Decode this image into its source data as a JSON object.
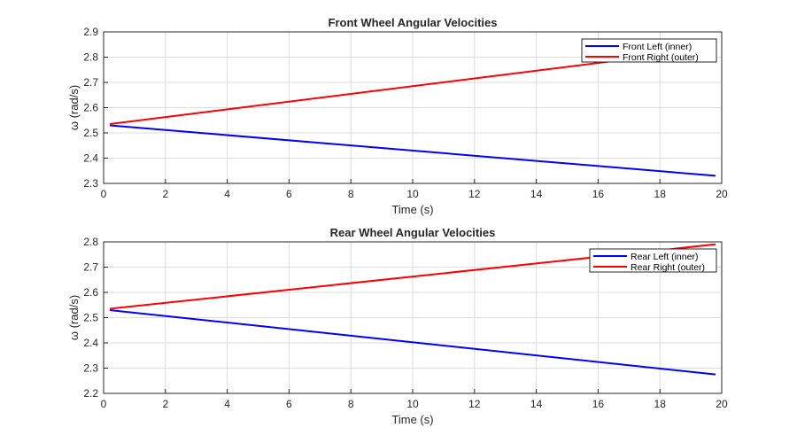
{
  "chart_data": [
    {
      "type": "line",
      "title": "Front Wheel Angular Velocities",
      "xlabel": "Time (s)",
      "ylabel": "ω (rad/s)",
      "xlim": [
        0,
        20
      ],
      "ylim": [
        2.3,
        2.9
      ],
      "xticks": [
        "0",
        "2",
        "4",
        "6",
        "8",
        "10",
        "12",
        "14",
        "16",
        "18",
        "20"
      ],
      "yticks": [
        "2.3",
        "2.4",
        "2.5",
        "2.6",
        "2.7",
        "2.8",
        "2.9"
      ],
      "grid": true,
      "legend_position": "top-right",
      "series": [
        {
          "name": "Front Left (inner)",
          "color": "#0000ff",
          "x": [
            0.2,
            19.8
          ],
          "y": [
            2.53,
            2.33
          ]
        },
        {
          "name": "Front Right (outer)",
          "color": "#ff0000",
          "x": [
            0.2,
            19.8
          ],
          "y": [
            2.535,
            2.835
          ]
        }
      ]
    },
    {
      "type": "line",
      "title": "Rear Wheel Angular Velocities",
      "xlabel": "Time (s)",
      "ylabel": "ω (rad/s)",
      "xlim": [
        0,
        20
      ],
      "ylim": [
        2.2,
        2.8
      ],
      "xticks": [
        "0",
        "2",
        "4",
        "6",
        "8",
        "10",
        "12",
        "14",
        "16",
        "18",
        "20"
      ],
      "yticks": [
        "2.2",
        "2.3",
        "2.4",
        "2.5",
        "2.6",
        "2.7",
        "2.8"
      ],
      "grid": true,
      "legend_position": "top-right",
      "series": [
        {
          "name": "Rear Left (inner)",
          "color": "#0000ff",
          "x": [
            0.2,
            19.8
          ],
          "y": [
            2.53,
            2.275
          ]
        },
        {
          "name": "Rear Right (outer)",
          "color": "#ff0000",
          "x": [
            0.2,
            19.8
          ],
          "y": [
            2.535,
            2.79
          ]
        }
      ]
    }
  ]
}
